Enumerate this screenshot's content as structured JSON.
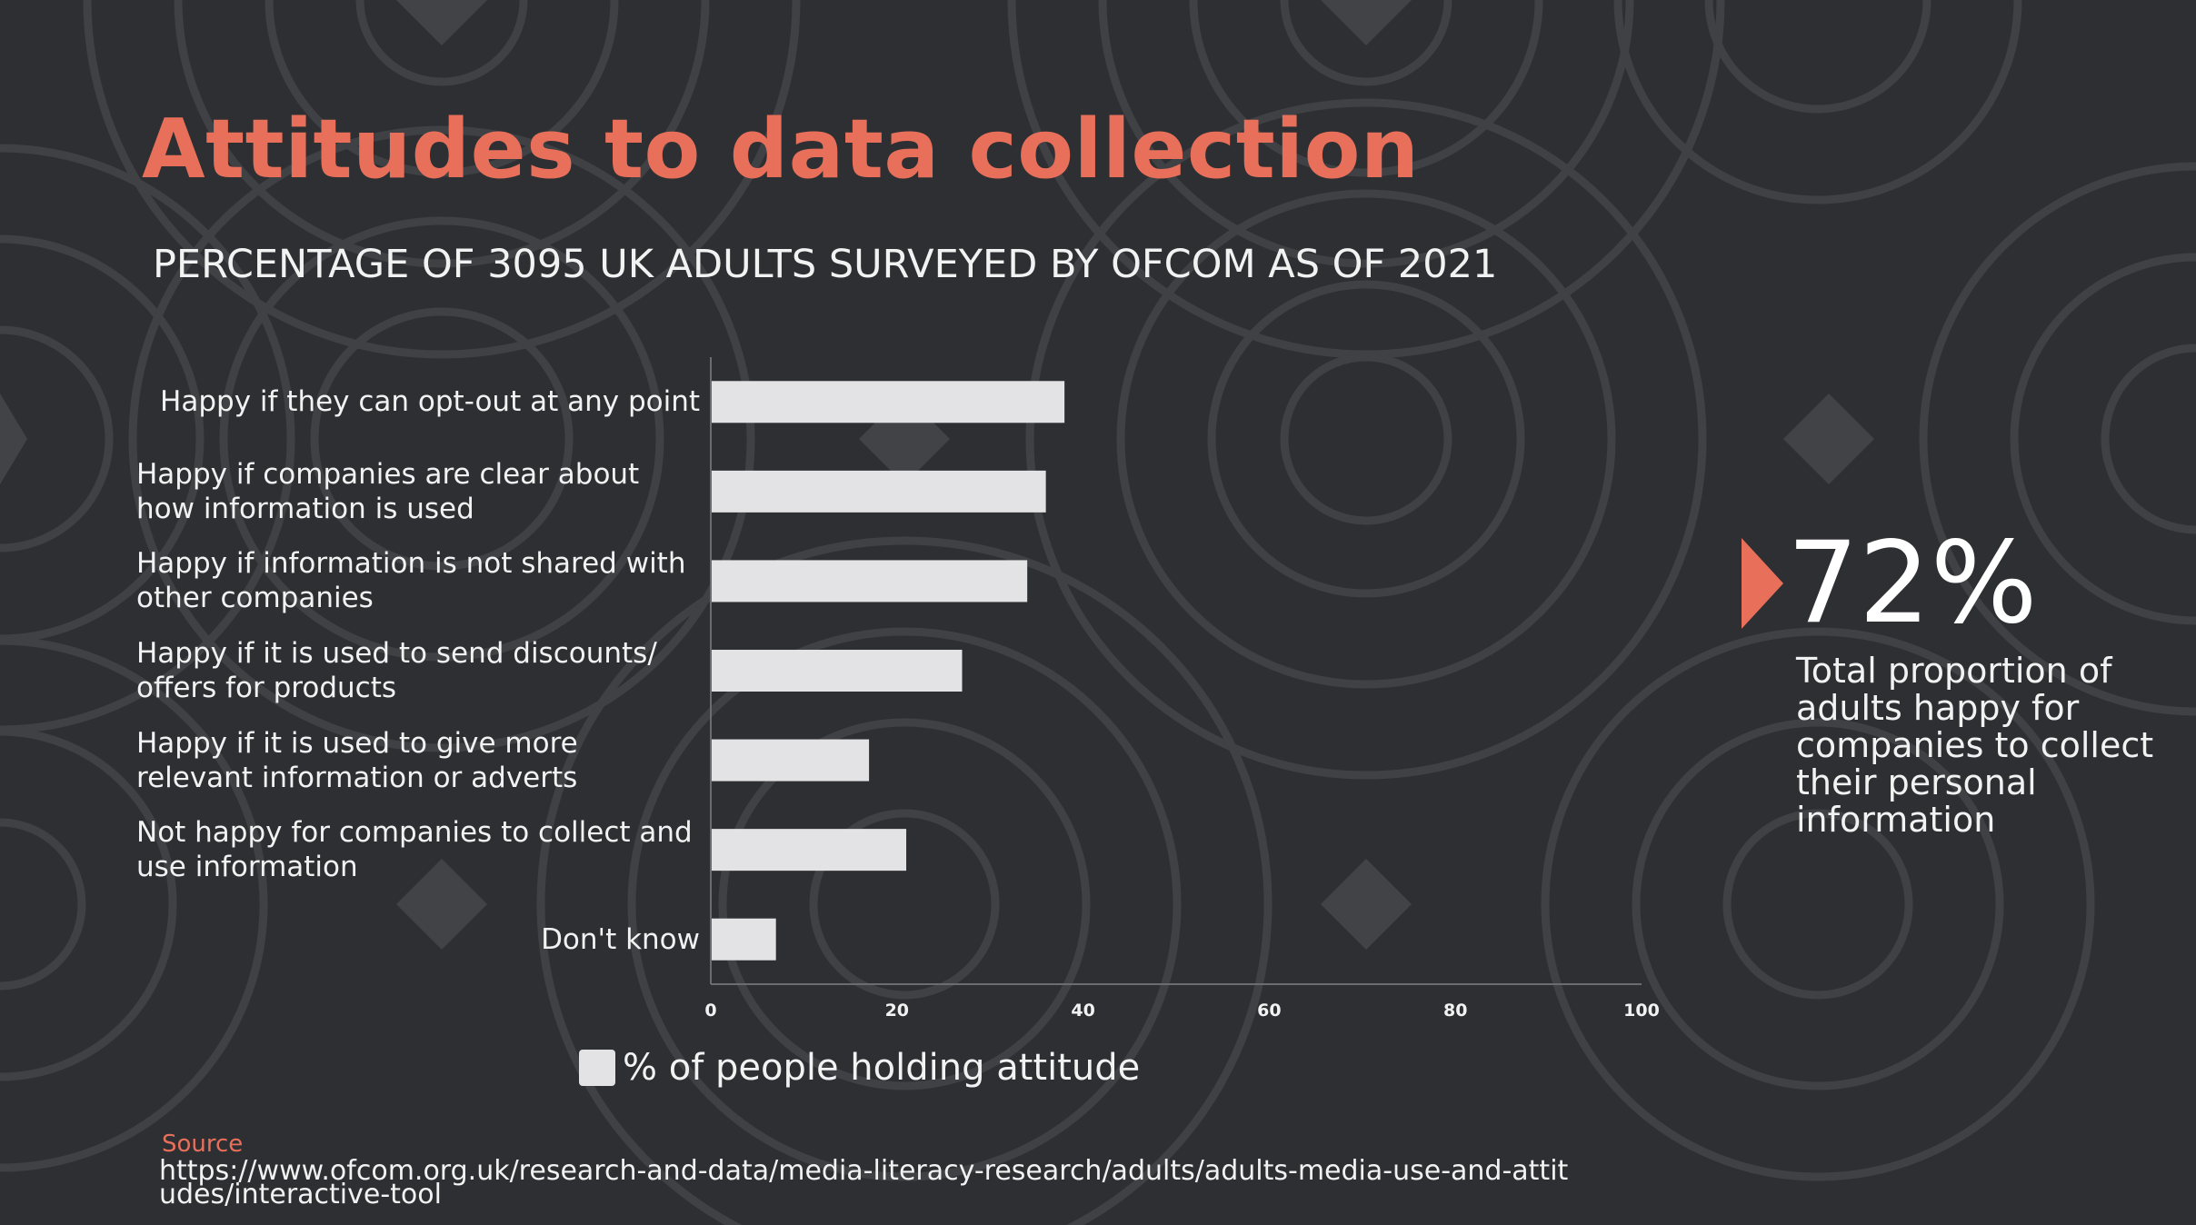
{
  "title": "Attitudes to data collection",
  "subtitle": "PERCENTAGE OF 3095 UK ADULTS SURVEYED BY OFCOM AS OF 2021",
  "colors": {
    "background": "#2d2f33",
    "accent": "#e8705b",
    "bar": "#e3e3e5",
    "text": "#f2f2f2"
  },
  "chart_data": {
    "type": "bar",
    "orientation": "horizontal",
    "categories": [
      "Happy if they can opt-out at any point",
      "Happy if companies are clear about how information is used",
      "Happy if information is not shared with other companies",
      "Happy if it is used to send discounts/ offers for products",
      "Happy if it is used to give more relevant information or adverts",
      "Not happy for companies to collect and use information",
      "Don't know"
    ],
    "series": [
      {
        "name": "% of people holding attitude",
        "values": [
          38,
          36,
          34,
          27,
          17,
          21,
          7
        ]
      }
    ],
    "xlim": [
      0,
      100
    ],
    "xticks": [
      "0",
      "20",
      "40",
      "60",
      "80",
      "100"
    ],
    "grid": false,
    "legend_position": "bottom"
  },
  "stat": {
    "value": "72%",
    "description": "Total proportion of adults happy for companies to collect their personal information"
  },
  "source": {
    "label": "Source",
    "url": "https://www.ofcom.org.uk/research-and-data/media-literacy-research/adults/adults-media-use-and-attitudes/interactive-tool"
  }
}
